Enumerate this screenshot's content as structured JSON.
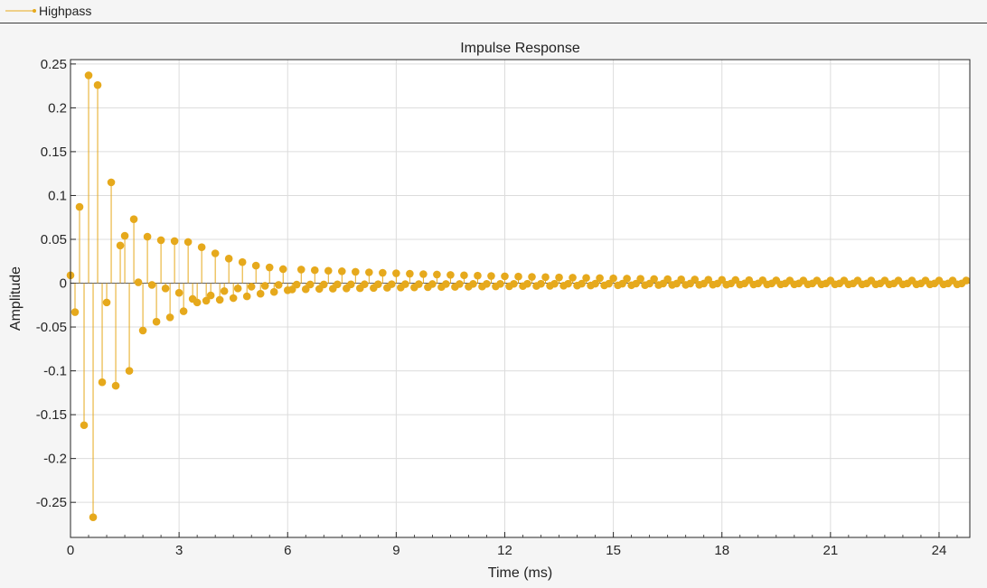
{
  "legend": {
    "label": "Highpass"
  },
  "chart_data": {
    "type": "stem",
    "title": "Impulse Response",
    "xlabel": "Time (ms)",
    "ylabel": "Amplitude",
    "xlim": [
      0,
      24.85
    ],
    "ylim": [
      -0.29,
      0.255
    ],
    "xticks": [
      0,
      3,
      6,
      9,
      12,
      15,
      18,
      21,
      24
    ],
    "xtick_labels": [
      "0",
      "3",
      "6",
      "9",
      "12",
      "15",
      "18",
      "21",
      "24"
    ],
    "yticks": [
      0.25,
      0.2,
      0.15,
      0.1,
      0.05,
      0,
      -0.05,
      -0.1,
      -0.15,
      -0.2,
      -0.25
    ],
    "ytick_labels": [
      "0.25",
      "0.2",
      "0.15",
      "0.1",
      "0.05",
      "0",
      "-0.05",
      "-0.1",
      "-0.15",
      "-0.2",
      "-0.25"
    ],
    "grid": true,
    "color": "#e6a91c",
    "series": [
      {
        "name": "Highpass",
        "x": [
          0,
          0.125,
          0.25,
          0.375,
          0.5,
          0.625,
          0.75,
          0.875,
          1.0,
          1.125,
          1.25,
          1.375,
          1.5,
          1.625,
          1.75,
          1.875,
          2.0,
          2.125,
          2.25,
          2.375,
          2.5,
          2.625,
          2.75,
          2.875,
          3.0,
          3.125,
          3.25,
          3.375,
          3.5,
          3.625,
          3.75,
          3.875,
          4.0,
          4.125,
          4.25,
          4.375,
          4.5,
          4.625,
          4.75,
          4.875,
          5.0,
          5.125,
          5.25,
          5.375,
          5.5,
          5.625,
          5.75,
          5.875,
          6.0
        ],
        "y": [
          0.009,
          -0.033,
          0.087,
          -0.162,
          0.237,
          -0.267,
          0.226,
          -0.113,
          -0.022,
          0.115,
          -0.117,
          0.043,
          0.054,
          -0.1,
          0.073,
          0.001,
          -0.054,
          0.053,
          -0.002,
          -0.044,
          0.049,
          -0.006,
          -0.039,
          0.048,
          -0.011,
          -0.032,
          0.047,
          -0.018,
          -0.022,
          0.041,
          -0.02,
          -0.014,
          0.034,
          -0.019,
          -0.009,
          0.028,
          -0.017,
          -0.006,
          0.024,
          -0.015,
          -0.004,
          0.02,
          -0.012,
          -0.003,
          0.018,
          -0.01,
          -0.002,
          0.016,
          -0.008
        ]
      }
    ]
  }
}
